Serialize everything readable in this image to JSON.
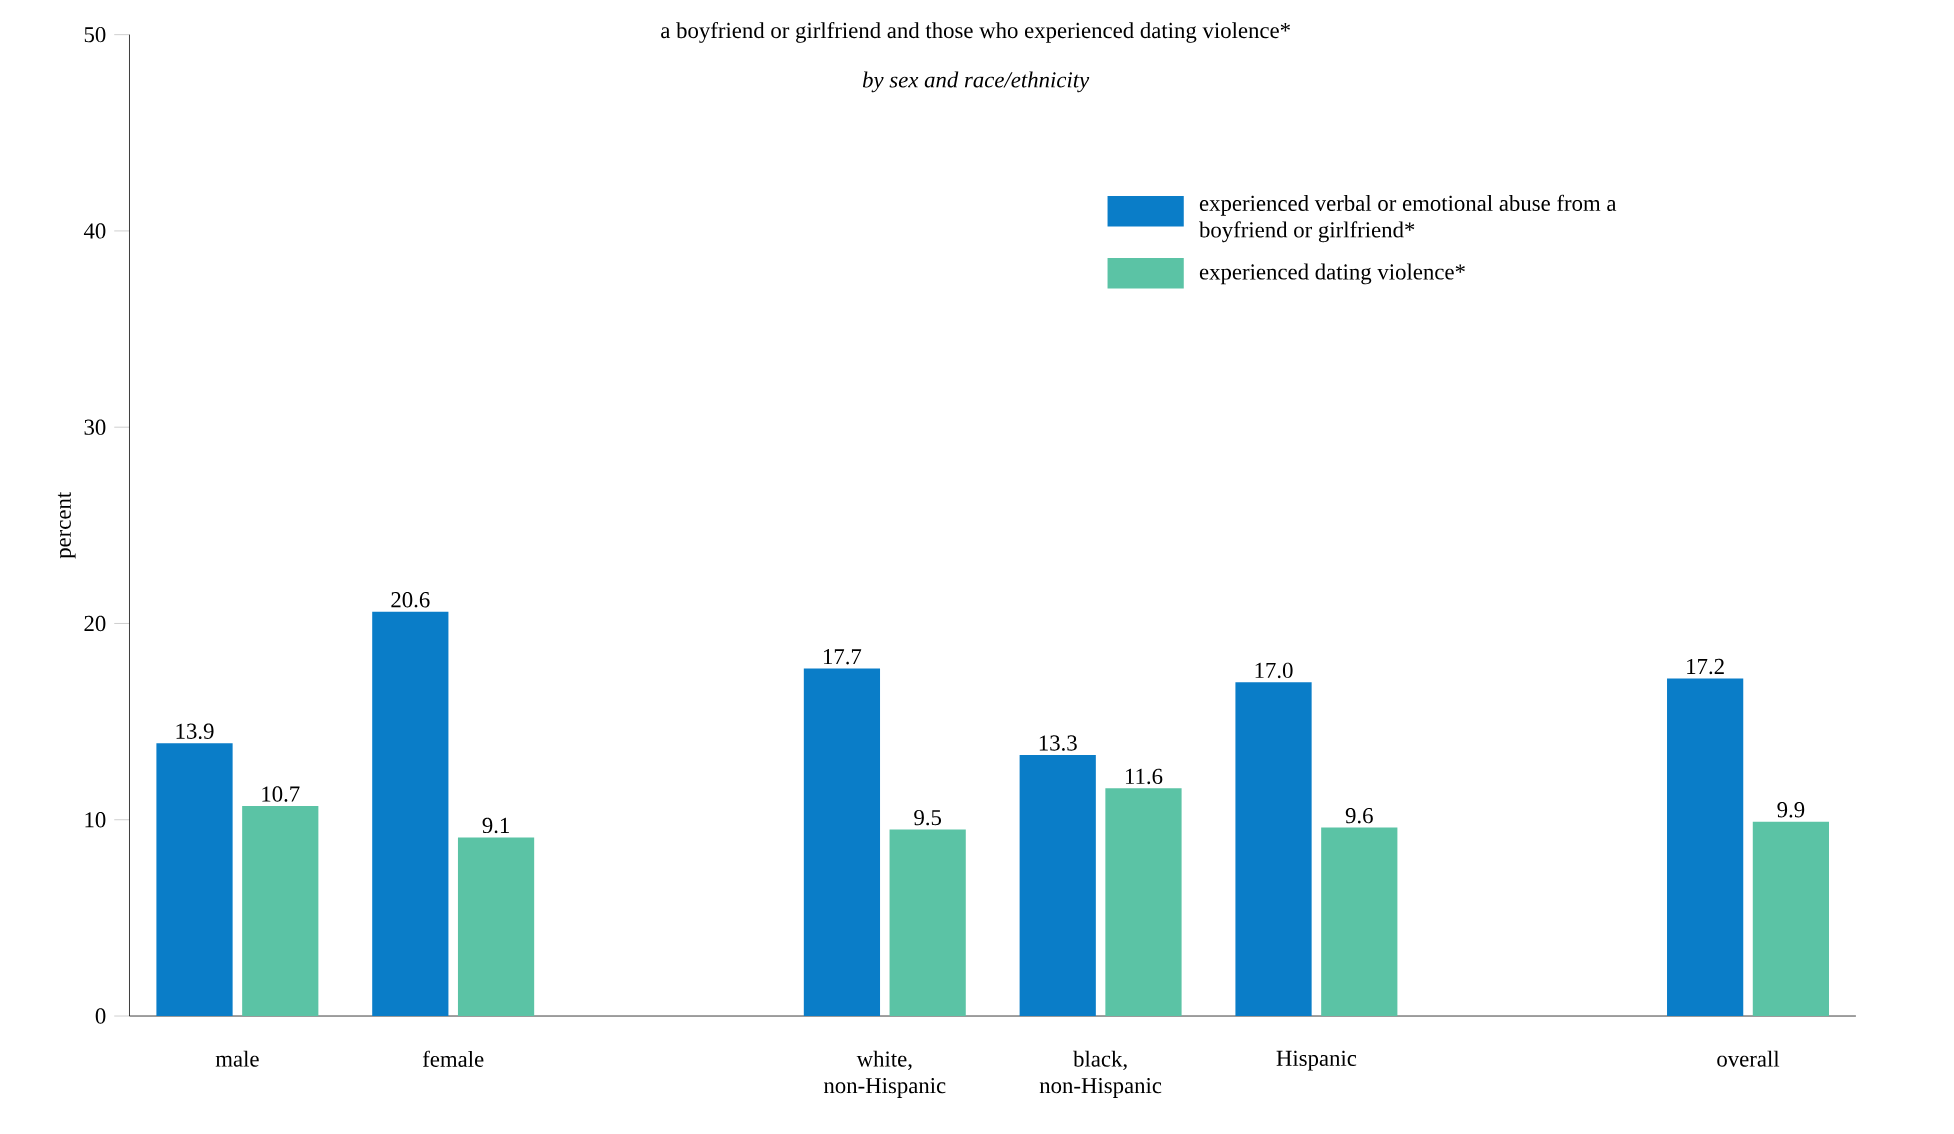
{
  "chart_data": {
    "type": "bar",
    "title": "a boyfriend or girlfriend and those who experienced dating violence*",
    "subtitle": "by sex and race/ethnicity",
    "ylabel": "percent",
    "categories": [
      "male",
      "female",
      null,
      "white, non-Hispanic",
      "black, non-Hispanic",
      "Hispanic",
      null,
      "overall"
    ],
    "series": [
      {
        "name": "experienced verbal or emotional abuse from a boyfriend or girlfriend*",
        "color": "#0a7dc8",
        "values": [
          13.9,
          20.6,
          null,
          17.7,
          13.3,
          17.0,
          null,
          17.2
        ],
        "value_labels": [
          "13.9",
          "20.6",
          null,
          "17.7",
          "13.3",
          "17.0",
          null,
          "17.2"
        ]
      },
      {
        "name": "experienced dating violence*",
        "color": "#5bc3a5",
        "values": [
          10.7,
          9.1,
          null,
          9.5,
          11.6,
          9.6,
          null,
          9.9
        ],
        "value_labels": [
          "10.7",
          "9.1",
          null,
          "9.5",
          "11.6",
          "9.6",
          null,
          "9.9"
        ]
      }
    ],
    "ylim": [
      0,
      50
    ],
    "yticks": [
      0,
      10,
      20,
      30,
      40,
      50
    ],
    "legend": "top right",
    "grid": false
  }
}
